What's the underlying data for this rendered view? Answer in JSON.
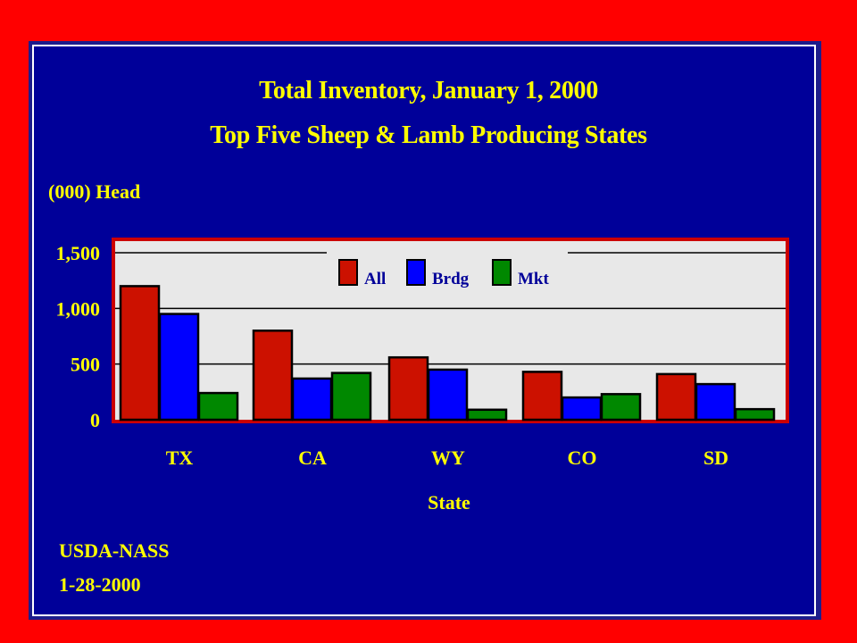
{
  "slide": {
    "background": "#ff0000",
    "panel_color": "#000099",
    "text_color": "#ffff00",
    "credit_lines": [
      "USDA-NASS",
      "1-28-2000"
    ]
  },
  "chart_data": {
    "type": "bar",
    "title": "Total Inventory, January 1, 2000",
    "subtitle": "Top Five Sheep & Lamb Producing States",
    "xlabel": "State",
    "ylabel": "(000) Head",
    "ylim": [
      0,
      1500
    ],
    "yticks": [
      0,
      500,
      1000,
      1500
    ],
    "ytick_labels": [
      "0",
      "500",
      "1,000",
      "1,500"
    ],
    "grid": true,
    "legend_position": "top-center",
    "categories": [
      "TX",
      "CA",
      "WY",
      "CO",
      "SD"
    ],
    "series": [
      {
        "name": "All",
        "color": "#cc1100",
        "values": [
          1200,
          800,
          560,
          430,
          410
        ]
      },
      {
        "name": "Brdg",
        "color": "#0000ff",
        "values": [
          950,
          370,
          450,
          200,
          320
        ]
      },
      {
        "name": "Mkt",
        "color": "#008800",
        "values": [
          240,
          420,
          90,
          230,
          95
        ]
      }
    ]
  }
}
